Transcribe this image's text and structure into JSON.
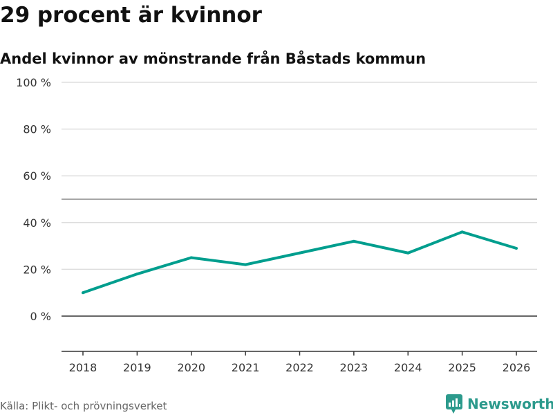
{
  "title": "29 procent är kvinnor",
  "subtitle": "Andel kvinnor av mönstrande från Båstads kommun",
  "source": "Källa: Plikt- och prövningsverket",
  "logo": "Newsworthy",
  "colors": {
    "line": "#009e8e",
    "grid": "#dddddd",
    "ref": "#888888",
    "axis": "#333333",
    "brand": "#2c9a8c"
  },
  "chart_data": {
    "type": "line",
    "title": "29 procent är kvinnor",
    "subtitle": "Andel kvinnor av mönstrande från Båstads kommun",
    "x": [
      "2018",
      "2019",
      "2020",
      "2021",
      "2022",
      "2023",
      "2024",
      "2025",
      "2026"
    ],
    "series": [
      {
        "name": "Andel kvinnor",
        "values": [
          10,
          18,
          25,
          22,
          27,
          32,
          27,
          36,
          29
        ]
      }
    ],
    "yticks": [
      0,
      20,
      40,
      60,
      80,
      100
    ],
    "ytick_labels": [
      "0 %",
      "20 %",
      "40 %",
      "60 %",
      "80 %",
      "100 %"
    ],
    "ylim": [
      -15,
      100
    ],
    "reference_line": 50,
    "grid": true
  }
}
